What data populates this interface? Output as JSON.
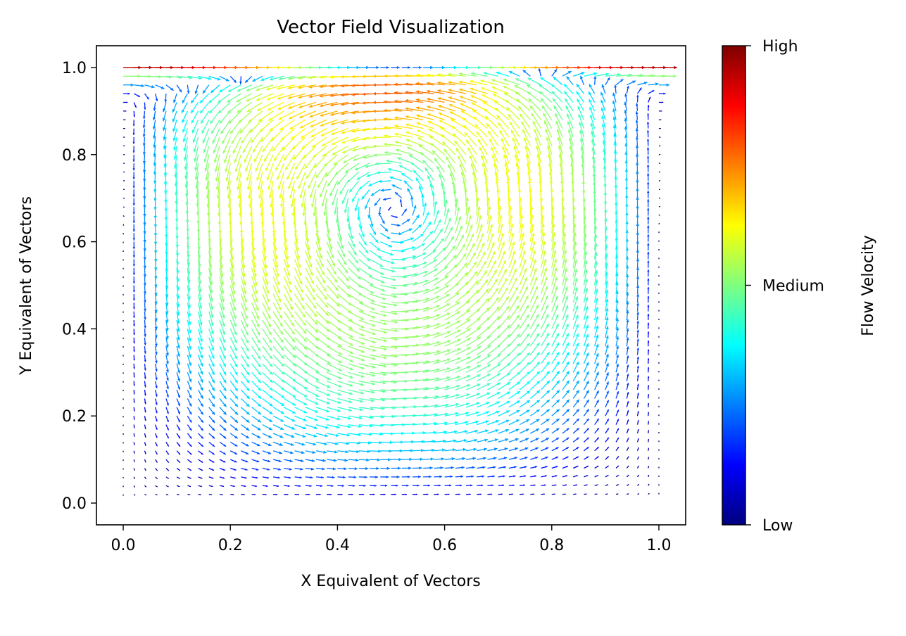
{
  "chart_data": {
    "type": "quiver",
    "title": "Vector Field Visualization",
    "xlabel": "X Equivalent of Vectors",
    "ylabel": "Y Equivalent of Vectors",
    "xlim": [
      -0.05,
      1.05
    ],
    "ylim": [
      -0.05,
      1.05
    ],
    "x_ticks": [
      0.0,
      0.2,
      0.4,
      0.6,
      0.8,
      1.0
    ],
    "y_ticks": [
      0.0,
      0.2,
      0.4,
      0.6,
      0.8,
      1.0
    ],
    "x_tick_labels": [
      "0.0",
      "0.2",
      "0.4",
      "0.6",
      "0.8",
      "1.0"
    ],
    "y_tick_labels": [
      "0.0",
      "0.2",
      "0.4",
      "0.6",
      "0.8",
      "1.0"
    ],
    "grid": false,
    "domain_x": [
      0.0,
      1.0
    ],
    "domain_y": [
      0.0,
      1.0
    ],
    "vortex_center": [
      0.55,
      0.57
    ],
    "lid_velocity_at_y": 1.0,
    "colormap": "jet",
    "colormap_stops": [
      "#00007f",
      "#0000ff",
      "#007fff",
      "#00ffff",
      "#7fff7f",
      "#ffff00",
      "#ff7f00",
      "#ff0000",
      "#7f0000"
    ],
    "colorbar": {
      "label": "Flow Velocity",
      "ticks": [
        {
          "position": 0.0,
          "label": "Low"
        },
        {
          "position": 0.5,
          "label": "Medium"
        },
        {
          "position": 1.0,
          "label": "High"
        }
      ]
    }
  }
}
